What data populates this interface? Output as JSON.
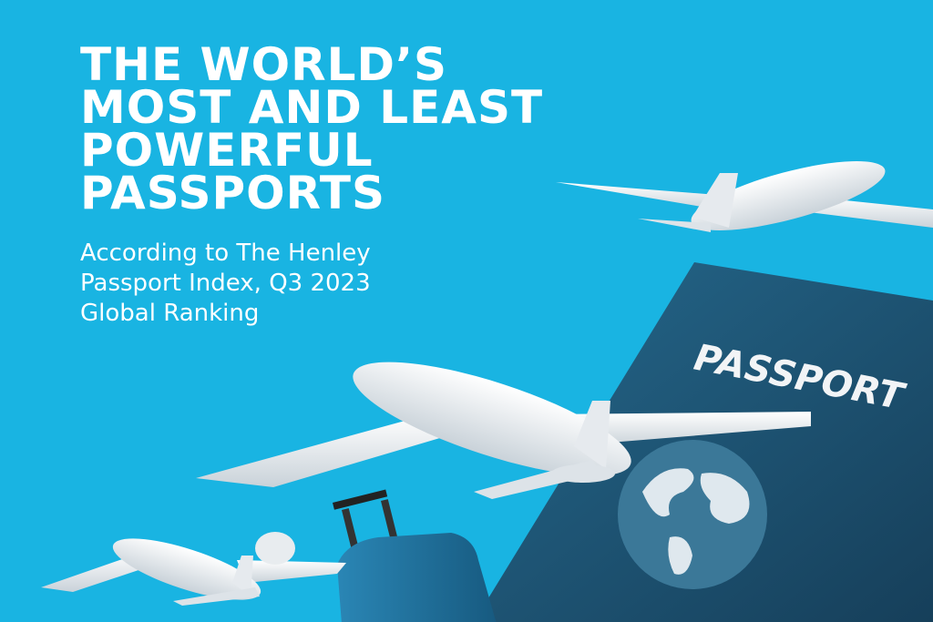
{
  "poster": {
    "title_lines": [
      "THE WORLD’S",
      "MOST AND LEAST",
      "POWERFUL",
      "PASSPORTS"
    ],
    "subtitle_lines": [
      "According to The Henley",
      "Passport Index, Q3 2023",
      "Global Ranking"
    ],
    "passport_label": "PASSPORT",
    "colors": {
      "background": "#19b4e2",
      "passport_cover": "#1d5778",
      "text": "#ffffff",
      "plane": "#f2f4f6",
      "suitcase": "#1f6f9a"
    },
    "icons": [
      "airplane-icon",
      "passport-icon",
      "globe-icon",
      "suitcase-icon"
    ]
  }
}
